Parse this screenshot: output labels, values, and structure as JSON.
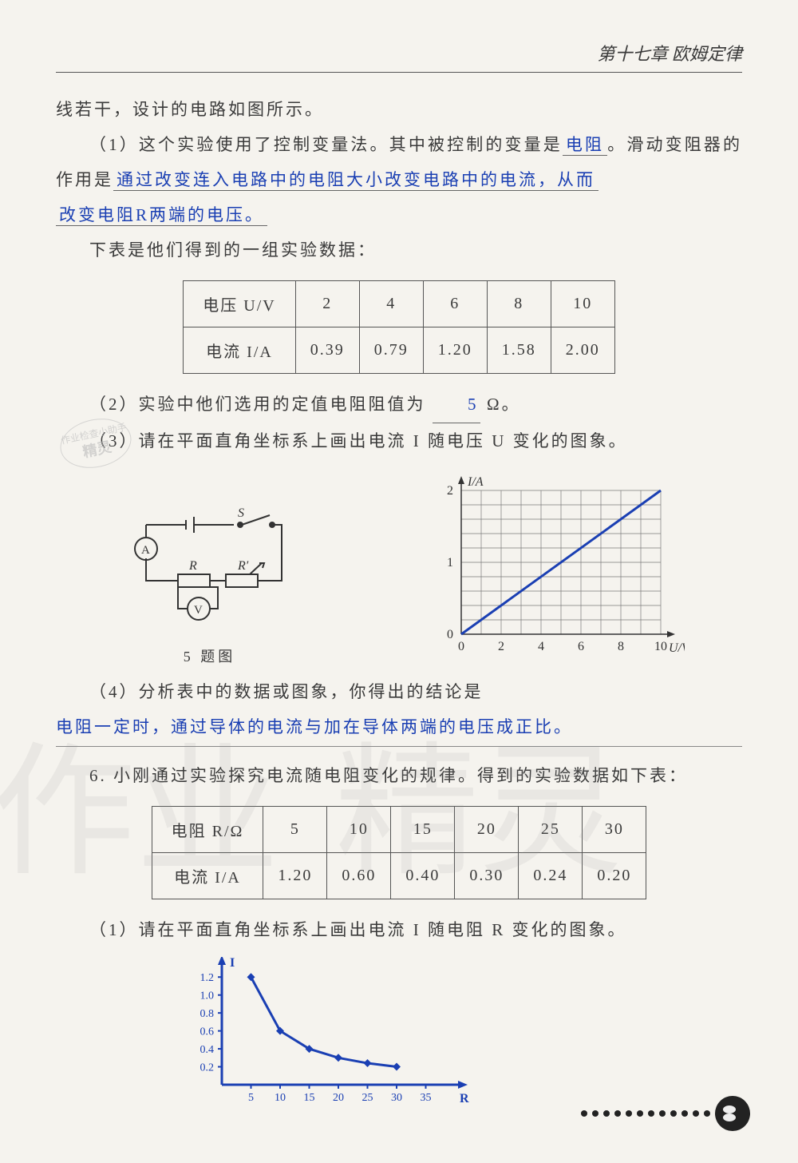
{
  "header": {
    "chapter": "第十七章  欧姆定律"
  },
  "p1": "线若干，设计的电路如图所示。",
  "q1_prefix": "（1）这个实验使用了控制变量法。其中被控制的变量是",
  "q1_ans": "电阻",
  "q1_mid": "。滑动变阻器的作用是",
  "q1_ans2a": "通过改变连入电路中的电阻大小改变电路中的电流，从而",
  "q1_ans2b": "改变电阻R两端的电压。",
  "p_table_intro": "下表是他们得到的一组实验数据：",
  "table1": {
    "headers": [
      "电压 U/V",
      "电流 I/A"
    ],
    "cols": [
      "2",
      "4",
      "6",
      "8",
      "10"
    ],
    "row2": [
      "0.39",
      "0.79",
      "1.20",
      "1.58",
      "2.00"
    ]
  },
  "q2_prefix": "（2）实验中他们选用的定值电阻阻值为",
  "q2_ans": "5",
  "q2_suffix": "Ω。",
  "q3": "（3）请在平面直角坐标系上画出电流 I 随电压 U 变化的图象。",
  "circuit_caption": "5 题图",
  "chart1": {
    "type": "line",
    "xlabel": "U/V",
    "ylabel": "I/A",
    "xlim": [
      0,
      10
    ],
    "ylim": [
      0,
      2
    ],
    "xticks": [
      0,
      2,
      4,
      6,
      8,
      10
    ],
    "yticks": [
      0,
      1,
      2
    ],
    "grid_minor_step_x": 1,
    "grid_minor_step_y": 0.2,
    "line_color": "#1a3fb3",
    "line_width": 3,
    "points": [
      [
        0,
        0
      ],
      [
        10,
        2
      ]
    ],
    "grid_color": "#7a7a7a",
    "bg": "#f5f3ee",
    "label_fontsize": 16
  },
  "q4_prefix": "（4）分析表中的数据或图象，你得出的结论是",
  "q4_ans": "电阻一定时，通过导体的电流与加在导体两端的电压成正比。",
  "q6_text": "6. 小刚通过实验探究电流随电阻变化的规律。得到的实验数据如下表：",
  "table2": {
    "headers": [
      "电阻 R/Ω",
      "电流 I/A"
    ],
    "cols": [
      "5",
      "10",
      "15",
      "20",
      "25",
      "30"
    ],
    "row2": [
      "1.20",
      "0.60",
      "0.40",
      "0.30",
      "0.24",
      "0.20"
    ]
  },
  "q6_1": "（1）请在平面直角坐标系上画出电流 I 随电阻 R 变化的图象。",
  "chart2": {
    "type": "line",
    "xlabel": "R",
    "ylabel": "I",
    "xlim": [
      0,
      40
    ],
    "ylim": [
      0,
      1.3
    ],
    "xticks": [
      5,
      10,
      15,
      20,
      25,
      30,
      35
    ],
    "yticks": [
      0.2,
      0.4,
      0.6,
      0.8,
      1.0,
      1.2
    ],
    "line_color": "#1a3fb3",
    "line_width": 3,
    "marker": "diamond",
    "marker_color": "#1a3fb3",
    "points": [
      [
        5,
        1.2
      ],
      [
        10,
        0.6
      ],
      [
        15,
        0.4
      ],
      [
        20,
        0.3
      ],
      [
        25,
        0.24
      ],
      [
        30,
        0.2
      ]
    ],
    "axis_color": "#1a3fb3",
    "bg": "#f5f3ee",
    "label_fontsize": 14
  },
  "stamp": {
    "line1": "作业检查小助手",
    "line2": "精灵"
  },
  "watermark": {
    "a": "作业",
    "b": "精灵"
  }
}
